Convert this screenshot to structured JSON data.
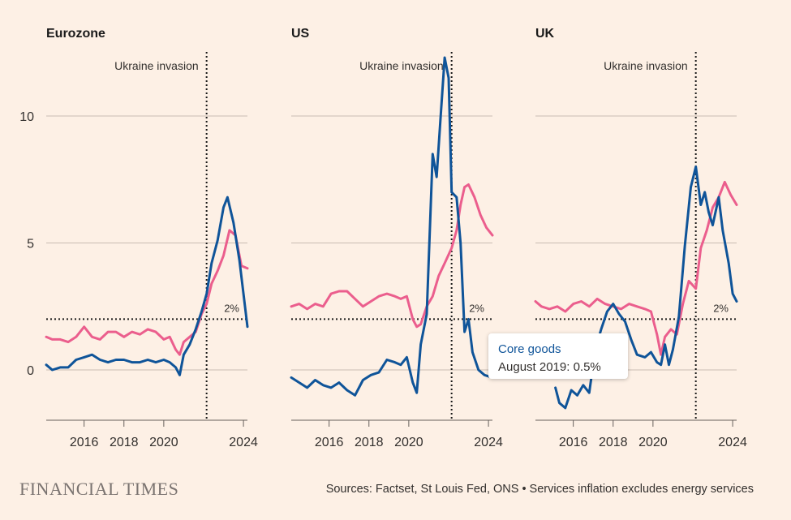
{
  "brand": "FINANCIAL TIMES",
  "source": "Sources: Factset, St Louis Fed, ONS • Services inflation excludes energy services",
  "colors": {
    "core_goods": "#0f5499",
    "services": "#eb5e8d",
    "background": "#fdf0e5"
  },
  "tooltip": {
    "series": "Core goods",
    "value_text": "August 2019: 0.5%"
  },
  "y_ticks": [
    "10",
    "5",
    "0"
  ],
  "chart_data": [
    {
      "type": "line",
      "title": "Eurozone",
      "x_ticks": [
        "2016",
        "2018",
        "2020",
        "2024"
      ],
      "y_ticks": [
        0,
        5,
        10
      ],
      "ylim": [
        -2,
        12.5
      ],
      "xlim": [
        2014.1,
        2024.2
      ],
      "grid": true,
      "annotations": [
        {
          "type": "vline",
          "x": 2022.15,
          "label": "Ukraine invasion"
        },
        {
          "type": "hline",
          "y": 2,
          "label": "2%"
        }
      ],
      "series": [
        {
          "name": "Core goods",
          "color": "#0f5499",
          "x": [
            2014.1,
            2014.4,
            2014.8,
            2015.2,
            2015.6,
            2016.0,
            2016.4,
            2016.8,
            2017.2,
            2017.6,
            2018.0,
            2018.4,
            2018.8,
            2019.2,
            2019.6,
            2020.0,
            2020.3,
            2020.6,
            2020.8,
            2021.0,
            2021.3,
            2021.6,
            2021.9,
            2022.15,
            2022.4,
            2022.7,
            2023.0,
            2023.2,
            2023.5,
            2023.8,
            2024.2
          ],
          "y": [
            0.2,
            0.0,
            0.1,
            0.1,
            0.4,
            0.5,
            0.6,
            0.4,
            0.3,
            0.4,
            0.4,
            0.3,
            0.3,
            0.4,
            0.3,
            0.4,
            0.3,
            0.1,
            -0.2,
            0.6,
            1.0,
            1.6,
            2.3,
            3.0,
            4.2,
            5.1,
            6.4,
            6.8,
            5.8,
            4.3,
            1.7
          ]
        },
        {
          "name": "Services",
          "color": "#eb5e8d",
          "x": [
            2014.1,
            2014.4,
            2014.8,
            2015.2,
            2015.6,
            2016.0,
            2016.4,
            2016.8,
            2017.2,
            2017.6,
            2018.0,
            2018.4,
            2018.8,
            2019.2,
            2019.6,
            2020.0,
            2020.3,
            2020.6,
            2020.8,
            2021.0,
            2021.3,
            2021.6,
            2021.9,
            2022.15,
            2022.4,
            2022.7,
            2023.0,
            2023.3,
            2023.6,
            2023.9,
            2024.2
          ],
          "y": [
            1.3,
            1.2,
            1.2,
            1.1,
            1.3,
            1.7,
            1.3,
            1.2,
            1.5,
            1.5,
            1.3,
            1.5,
            1.4,
            1.6,
            1.5,
            1.2,
            1.3,
            0.8,
            0.6,
            1.1,
            1.3,
            1.5,
            2.2,
            2.6,
            3.4,
            3.9,
            4.5,
            5.5,
            5.3,
            4.1,
            4.0
          ]
        }
      ]
    },
    {
      "type": "line",
      "title": "US",
      "x_ticks": [
        "2016",
        "2018",
        "2020",
        "2024"
      ],
      "y_ticks": [
        0,
        5,
        10
      ],
      "ylim": [
        -2,
        12.5
      ],
      "xlim": [
        2014.1,
        2024.2
      ],
      "grid": true,
      "annotations": [
        {
          "type": "vline",
          "x": 2022.15,
          "label": "Ukraine invasion"
        },
        {
          "type": "hline",
          "y": 2,
          "label": "2%"
        }
      ],
      "series": [
        {
          "name": "Core goods",
          "color": "#0f5499",
          "x": [
            2014.1,
            2014.5,
            2014.9,
            2015.3,
            2015.7,
            2016.1,
            2016.5,
            2016.9,
            2017.3,
            2017.7,
            2018.1,
            2018.5,
            2018.9,
            2019.3,
            2019.6,
            2019.9,
            2020.2,
            2020.4,
            2020.6,
            2020.9,
            2021.2,
            2021.4,
            2021.6,
            2021.8,
            2022.0,
            2022.15,
            2022.4,
            2022.6,
            2022.8,
            2023.0,
            2023.2,
            2023.5,
            2023.8,
            2024.2
          ],
          "y": [
            -0.3,
            -0.5,
            -0.7,
            -0.4,
            -0.6,
            -0.7,
            -0.5,
            -0.8,
            -1.0,
            -0.4,
            -0.2,
            -0.1,
            0.4,
            0.3,
            0.2,
            0.5,
            -0.5,
            -0.9,
            1.0,
            2.2,
            8.5,
            7.6,
            10.0,
            12.3,
            11.5,
            7.0,
            6.8,
            5.0,
            1.5,
            2.0,
            0.7,
            0.0,
            -0.2,
            -0.3
          ]
        },
        {
          "name": "Services",
          "color": "#eb5e8d",
          "x": [
            2014.1,
            2014.5,
            2014.9,
            2015.3,
            2015.7,
            2016.1,
            2016.5,
            2016.9,
            2017.3,
            2017.7,
            2018.1,
            2018.5,
            2018.9,
            2019.3,
            2019.6,
            2019.9,
            2020.2,
            2020.4,
            2020.6,
            2020.9,
            2021.2,
            2021.5,
            2021.8,
            2022.15,
            2022.4,
            2022.6,
            2022.8,
            2023.0,
            2023.3,
            2023.6,
            2023.9,
            2024.2
          ],
          "y": [
            2.5,
            2.6,
            2.4,
            2.6,
            2.5,
            3.0,
            3.1,
            3.1,
            2.8,
            2.5,
            2.7,
            2.9,
            3.0,
            2.9,
            2.8,
            2.9,
            2.0,
            1.7,
            1.8,
            2.5,
            2.9,
            3.7,
            4.2,
            4.8,
            5.5,
            6.5,
            7.2,
            7.3,
            6.8,
            6.1,
            5.6,
            5.3
          ]
        }
      ]
    },
    {
      "type": "line",
      "title": "UK",
      "x_ticks": [
        "2016",
        "2018",
        "2020",
        "2024"
      ],
      "y_ticks": [
        0,
        5,
        10
      ],
      "ylim": [
        -2,
        12.5
      ],
      "xlim": [
        2014.1,
        2024.2
      ],
      "grid": true,
      "annotations": [
        {
          "type": "vline",
          "x": 2022.15,
          "label": "Ukraine invasion"
        },
        {
          "type": "hline",
          "y": 2,
          "label": "2%"
        }
      ],
      "series": [
        {
          "name": "Core goods",
          "color": "#0f5499",
          "x": [
            2015.1,
            2015.3,
            2015.6,
            2015.9,
            2016.2,
            2016.5,
            2016.8,
            2017.1,
            2017.4,
            2017.7,
            2018.0,
            2018.3,
            2018.6,
            2018.9,
            2019.2,
            2019.6,
            2019.9,
            2020.2,
            2020.4,
            2020.6,
            2020.8,
            2021.0,
            2021.3,
            2021.6,
            2021.9,
            2022.15,
            2022.4,
            2022.6,
            2022.8,
            2023.0,
            2023.3,
            2023.5,
            2023.8,
            2024.0,
            2024.2
          ],
          "y": [
            -0.7,
            -1.3,
            -1.5,
            -0.8,
            -1.0,
            -0.6,
            -0.9,
            0.8,
            1.6,
            2.3,
            2.6,
            2.2,
            1.9,
            1.2,
            0.6,
            0.5,
            0.7,
            0.3,
            0.2,
            1.0,
            0.2,
            0.8,
            2.1,
            4.9,
            7.2,
            8.0,
            6.5,
            7.0,
            6.2,
            5.7,
            6.8,
            5.5,
            4.2,
            3.0,
            2.7
          ]
        },
        {
          "name": "Services",
          "color": "#eb5e8d",
          "x": [
            2014.1,
            2014.4,
            2014.8,
            2015.2,
            2015.6,
            2016.0,
            2016.4,
            2016.8,
            2017.2,
            2017.6,
            2018.0,
            2018.4,
            2018.8,
            2019.2,
            2019.6,
            2019.9,
            2020.2,
            2020.4,
            2020.6,
            2020.9,
            2021.2,
            2021.5,
            2021.8,
            2022.15,
            2022.4,
            2022.7,
            2023.0,
            2023.3,
            2023.6,
            2023.9,
            2024.2
          ],
          "y": [
            2.7,
            2.5,
            2.4,
            2.5,
            2.3,
            2.6,
            2.7,
            2.5,
            2.8,
            2.6,
            2.5,
            2.4,
            2.6,
            2.5,
            2.4,
            2.3,
            1.4,
            0.6,
            1.3,
            1.6,
            1.4,
            2.6,
            3.5,
            3.2,
            4.8,
            5.5,
            6.4,
            6.8,
            7.4,
            6.9,
            6.5
          ]
        }
      ]
    }
  ]
}
